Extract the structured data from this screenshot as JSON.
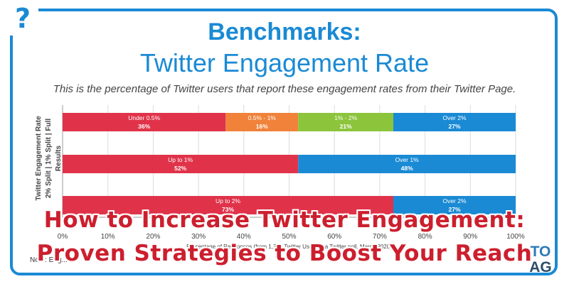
{
  "header": {
    "help_symbol": "?",
    "title_line1": "Benchmarks:",
    "title_line2": "Twitter Engagement Rate",
    "subtitle": "This is the percentage of Twitter users that report these engagement rates from their Twitter Page."
  },
  "chart_data": {
    "type": "bar",
    "orientation": "horizontal-stacked",
    "ylabel_line1": "Twitter Engagement Rate",
    "ylabel_line2": "2% Split | 1% Split | Full Results",
    "xlabel": "Percentage of Responses (from 1,272 Twitter Users in a Twitter poll, March 2020)",
    "xlim": [
      0,
      100
    ],
    "xticks": [
      "0%",
      "10%",
      "20%",
      "30%",
      "40%",
      "50%",
      "60%",
      "70%",
      "80%",
      "90%",
      "100%"
    ],
    "grid": true,
    "rows": [
      {
        "segments": [
          {
            "label": "Under 0.5%",
            "value": 36,
            "value_label": "36%",
            "color": "#e0334a"
          },
          {
            "label": "0.5% - 1%",
            "value": 16,
            "value_label": "16%",
            "color": "#f0823a"
          },
          {
            "label": "1% - 2%",
            "value": 21,
            "value_label": "21%",
            "color": "#8cc43c"
          },
          {
            "label": "Over 2%",
            "value": 27,
            "value_label": "27%",
            "color": "#1a8ad4"
          }
        ]
      },
      {
        "segments": [
          {
            "label": "Up to 1%",
            "value": 52,
            "value_label": "52%",
            "color": "#e0334a"
          },
          {
            "label": "Over 1%",
            "value": 48,
            "value_label": "48%",
            "color": "#1a8ad4"
          }
        ]
      },
      {
        "segments": [
          {
            "label": "Up to 2%",
            "value": 73,
            "value_label": "73%",
            "color": "#e0334a"
          },
          {
            "label": "Over 2%",
            "value": 27,
            "value_label": "27%",
            "color": "#1a8ad4"
          }
        ]
      }
    ]
  },
  "footer": {
    "note": "Note: Eng..."
  },
  "overlay": {
    "line1": "How to Increase Twitter Engagement:",
    "line2": "Proven Strategies to Boost Your Reach"
  },
  "logo": {
    "top": "TO",
    "bottom": "AG"
  }
}
